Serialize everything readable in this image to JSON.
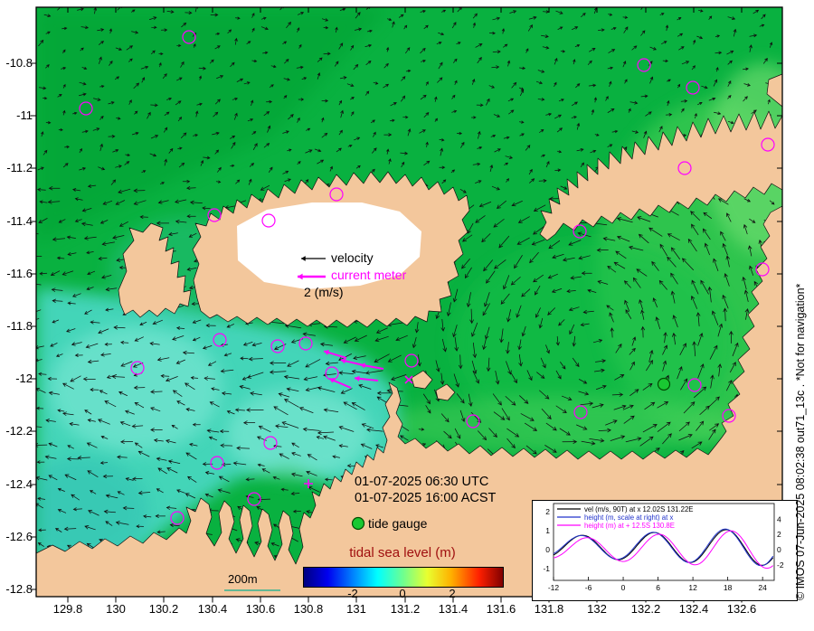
{
  "palette": {
    "ocean_green": "#09b140",
    "ocean_green_dark": "#00a033",
    "ocean_green_light": "#43cf55",
    "ocean_green_lighter": "#6cdc6e",
    "gulf_green": "#14c04a",
    "shallow_green": "#52d55e",
    "cyan_main": "#46d7bf",
    "cyan_light": "#7fe8d6",
    "cyan_lighter": "#90eddc",
    "teal_deep": "#2fbfb2",
    "land": "#f3c79c",
    "coast": "#111111",
    "arrow": "#101010",
    "magenta": "#ff00ff",
    "tide_gauge_green": "#19c832",
    "colorbar_title": "#a01010"
  },
  "map": {
    "legend": {
      "velocity": "velocity",
      "current_meter": "current meter",
      "scale": "2 (m/s)"
    },
    "timestamp_utc": "01-07-2025 06:30 UTC",
    "timestamp_local": "01-07-2025 16:00 ACST",
    "tide_gauge_label": "tide gauge",
    "scalebar_label": "200m"
  },
  "axes": {
    "x_ticks": [
      "129.8",
      "130",
      "130.2",
      "130.4",
      "130.6",
      "130.8",
      "131",
      "131.2",
      "131.4",
      "131.6",
      "131.8",
      "132",
      "132.2",
      "132.4",
      "132.6"
    ],
    "y_ticks": [
      "-10.8",
      "-11",
      "-11.2",
      "-11.4",
      "-11.6",
      "-11.8",
      "-12",
      "-12.2",
      "-12.4",
      "-12.6",
      "-12.8"
    ]
  },
  "colorbar": {
    "title": "tidal sea level (m)",
    "ticks": [
      "-2",
      "0",
      "2"
    ]
  },
  "inset": {
    "x_ticks": [
      "-12",
      "-6",
      "0",
      "6",
      "12",
      "18",
      "24"
    ],
    "left_ticks": [
      "2",
      "1",
      "0",
      "-1"
    ],
    "right_ticks": [
      "4",
      "2",
      "0",
      "-2"
    ]
  },
  "watermark": "© IMOS 07-Jun-2025 08:02:38 out71_13c . *Not for navigation*",
  "chart_data": {
    "type": "line",
    "x_range": [
      -12,
      26
    ],
    "x_tick_values": [
      -12,
      -6,
      0,
      6,
      12,
      18,
      24
    ],
    "left_axis_ticks": [
      2,
      1,
      0,
      -1
    ],
    "right_axis_ticks": [
      4,
      2,
      0,
      -2
    ],
    "legend_position": "top-left",
    "series": [
      {
        "name": "vel (m/s, 90T) at x 12.02S 131.22E",
        "color": "#000000",
        "axis": "left",
        "mean": 0.15,
        "amplitude_start": 0.55,
        "amplitude_end": 1.0,
        "period": 12.4,
        "phase": 2.2
      },
      {
        "name": "height (m, scale at right) at x",
        "color": "#2233cc",
        "axis": "right",
        "mean": 0.4,
        "amplitude_start": 1.3,
        "amplitude_end": 2.6,
        "period": 12.4,
        "phase": 2.0
      },
      {
        "name": "height (m) at + 12.5S 130.8E",
        "color": "#ff00ff",
        "axis": "left",
        "mean": 0.05,
        "amplitude_start": 0.5,
        "amplitude_end": 1.05,
        "period": 12.4,
        "phase": 3.0
      }
    ]
  }
}
